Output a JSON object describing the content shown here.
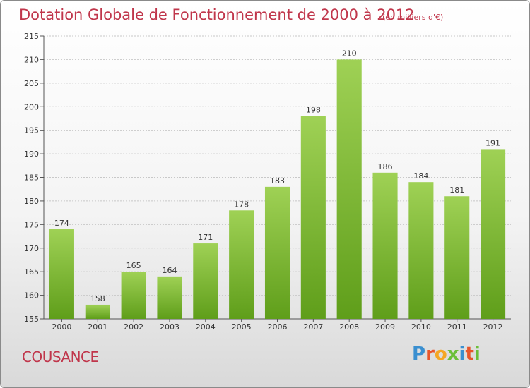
{
  "title": "Dotation Globale de Fonctionnement de 2000 à 2012",
  "subtitle": "(en milliers d'€)",
  "commune": "COUSANCE",
  "logo": {
    "text": "Proxiti",
    "colors": [
      "#3a8fd0",
      "#e8552a",
      "#f5a623",
      "#6bbf3a",
      "#3a8fd0",
      "#e8552a",
      "#6bbf3a"
    ]
  },
  "colors": {
    "title": "#c0364b",
    "bar_light": "#9fd155",
    "bar_dark": "#5f9e1a"
  },
  "chart_data": {
    "type": "bar",
    "categories": [
      "2000",
      "2001",
      "2002",
      "2003",
      "2004",
      "2005",
      "2006",
      "2007",
      "2008",
      "2009",
      "2010",
      "2011",
      "2012"
    ],
    "values": [
      174,
      158,
      165,
      164,
      171,
      178,
      183,
      198,
      210,
      186,
      184,
      181,
      191
    ],
    "title": "Dotation Globale de Fonctionnement de 2000 à 2012",
    "subtitle": "(en milliers d'€)",
    "ylim": [
      155,
      215
    ],
    "yticks": [
      155,
      160,
      165,
      170,
      175,
      180,
      185,
      190,
      195,
      200,
      205,
      210,
      215
    ],
    "grid": true,
    "data_labels": true
  }
}
